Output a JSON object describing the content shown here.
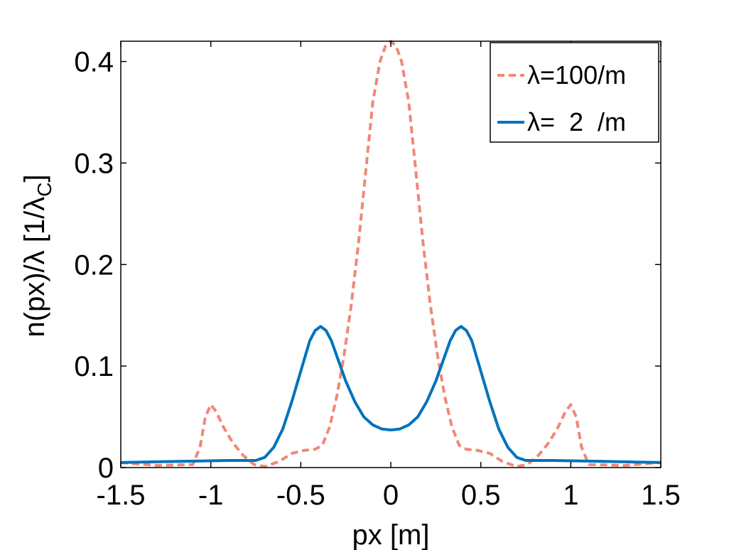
{
  "chart_data": {
    "type": "line",
    "xlabel": "px [m]",
    "ylabel": "n(px)/λ [1/λ",
    "ylabel_sub": "C",
    "ylabel_end": "]",
    "xlim": [
      -1.5,
      1.5
    ],
    "ylim": [
      0,
      0.42
    ],
    "xticks": [
      {
        "value": -1.5,
        "label": "-1.5"
      },
      {
        "value": -1,
        "label": "-1"
      },
      {
        "value": -0.5,
        "label": "-0.5"
      },
      {
        "value": 0,
        "label": "0"
      },
      {
        "value": 0.5,
        "label": "0.5"
      },
      {
        "value": 1,
        "label": "1"
      },
      {
        "value": 1.5,
        "label": "1.5"
      }
    ],
    "yticks": [
      {
        "value": 0,
        "label": "0"
      },
      {
        "value": 0.1,
        "label": "0.1"
      },
      {
        "value": 0.2,
        "label": "0.2"
      },
      {
        "value": 0.3,
        "label": "0.3"
      },
      {
        "value": 0.4,
        "label": "0.4"
      }
    ],
    "grid": false,
    "legend_position": "top-right",
    "series": [
      {
        "name": "λ=100/m",
        "color": "#f08878",
        "dash": "dashed",
        "x": [
          -1.5,
          -1.3,
          -1.1,
          -1.06,
          -1.03,
          -1.0,
          -0.97,
          -0.93,
          -0.88,
          -0.82,
          -0.76,
          -0.7,
          -0.62,
          -0.55,
          -0.48,
          -0.42,
          -0.38,
          -0.34,
          -0.3,
          -0.26,
          -0.22,
          -0.18,
          -0.14,
          -0.1,
          -0.06,
          -0.03,
          0.0,
          0.03,
          0.06,
          0.1,
          0.14,
          0.18,
          0.22,
          0.26,
          0.3,
          0.34,
          0.38,
          0.42,
          0.48,
          0.55,
          0.62,
          0.7,
          0.76,
          0.82,
          0.88,
          0.93,
          0.97,
          1.0,
          1.03,
          1.06,
          1.1,
          1.3,
          1.5
        ],
        "values": [
          0.005,
          0.002,
          0.003,
          0.02,
          0.05,
          0.062,
          0.055,
          0.04,
          0.025,
          0.012,
          0.003,
          0.001,
          0.006,
          0.014,
          0.017,
          0.018,
          0.022,
          0.04,
          0.07,
          0.11,
          0.16,
          0.22,
          0.29,
          0.36,
          0.4,
          0.415,
          0.42,
          0.415,
          0.4,
          0.36,
          0.29,
          0.22,
          0.16,
          0.11,
          0.07,
          0.04,
          0.022,
          0.018,
          0.017,
          0.014,
          0.006,
          0.001,
          0.003,
          0.012,
          0.025,
          0.04,
          0.055,
          0.062,
          0.05,
          0.02,
          0.003,
          0.002,
          0.005
        ]
      },
      {
        "name": "λ=  2  /m",
        "color": "#0072bd",
        "dash": "solid",
        "x": [
          -1.5,
          -1.2,
          -0.9,
          -0.75,
          -0.7,
          -0.65,
          -0.6,
          -0.55,
          -0.5,
          -0.45,
          -0.42,
          -0.39,
          -0.36,
          -0.33,
          -0.3,
          -0.25,
          -0.2,
          -0.15,
          -0.1,
          -0.05,
          0.0,
          0.05,
          0.1,
          0.15,
          0.2,
          0.25,
          0.3,
          0.33,
          0.36,
          0.39,
          0.42,
          0.45,
          0.5,
          0.55,
          0.6,
          0.65,
          0.7,
          0.75,
          0.9,
          1.2,
          1.5
        ],
        "values": [
          0.005,
          0.006,
          0.007,
          0.007,
          0.01,
          0.02,
          0.038,
          0.065,
          0.095,
          0.125,
          0.135,
          0.139,
          0.135,
          0.125,
          0.11,
          0.085,
          0.065,
          0.05,
          0.042,
          0.038,
          0.037,
          0.038,
          0.042,
          0.05,
          0.065,
          0.085,
          0.11,
          0.125,
          0.135,
          0.139,
          0.135,
          0.125,
          0.095,
          0.065,
          0.038,
          0.02,
          0.01,
          0.007,
          0.007,
          0.006,
          0.005
        ]
      }
    ]
  }
}
